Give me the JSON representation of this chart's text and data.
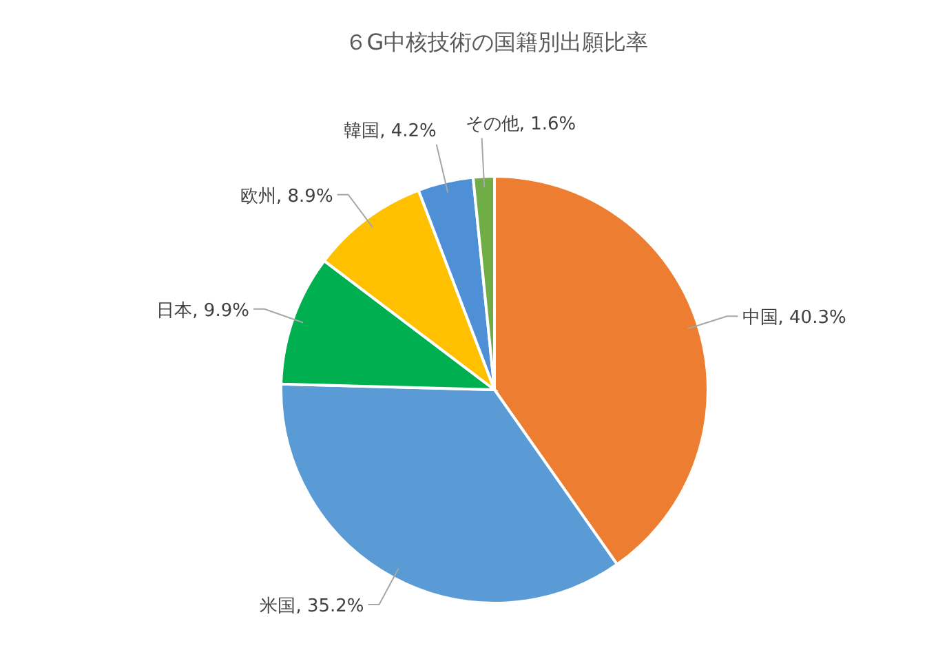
{
  "chart_data": {
    "type": "pie",
    "title": "６G中核技術の国籍別出願比率",
    "categories": [
      "中国",
      "米国",
      "日本",
      "欧州",
      "韓国",
      "その他"
    ],
    "values": [
      40.3,
      35.2,
      9.9,
      8.9,
      4.2,
      1.6
    ],
    "colors": [
      "#ed7d31",
      "#5b9bd5",
      "#00b050",
      "#ffc000",
      "#4f8fd6",
      "#70ad47"
    ],
    "value_labels": [
      "40.3%",
      "35.2%",
      "9.9%",
      "8.9%",
      "4.2%",
      "1.6%"
    ]
  }
}
